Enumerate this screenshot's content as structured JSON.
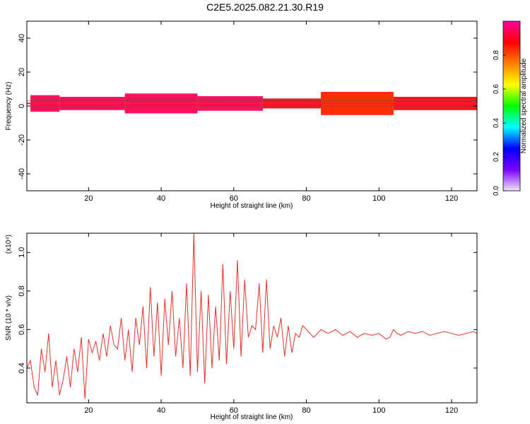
{
  "title": "C2E5.2025.082.21.30.R19",
  "chart_data": [
    {
      "type": "heatmap",
      "xlabel": "Height of straight line (km)",
      "ylabel": "Frequency (Hz)",
      "xlim": [
        3,
        127
      ],
      "ylim": [
        -50,
        50
      ],
      "xticks": [
        20,
        40,
        60,
        80,
        100,
        120
      ],
      "yticks": [
        -40,
        -20,
        0,
        20,
        40
      ],
      "ytick_labels": [
        "-40",
        "-20",
        "0",
        "20",
        "40"
      ],
      "colorbar": {
        "label": "Normalized spectral amplitude",
        "range": [
          0,
          1
        ],
        "ticks": [
          0.0,
          0.2,
          0.4,
          0.6,
          0.8
        ],
        "tick_labels": [
          "0.0",
          "0.2",
          "0.4",
          "0.6",
          "0.8"
        ],
        "colormap": [
          "#f0e4ff",
          "#7a00ff",
          "#0000ff",
          "#00ffff",
          "#00ff00",
          "#ffff00",
          "#ff8000",
          "#ff0000",
          "#ff00a0"
        ]
      },
      "band": {
        "center_hz": 1.5,
        "segments": [
          {
            "x": [
              4,
              12
            ],
            "halfwidth_hz": 2.5,
            "peak": 0.95
          },
          {
            "x": [
              12,
              30
            ],
            "halfwidth_hz": 2.0,
            "peak": 0.95
          },
          {
            "x": [
              30,
              50
            ],
            "halfwidth_hz": 3.0,
            "peak": 0.95
          },
          {
            "x": [
              50,
              68
            ],
            "halfwidth_hz": 2.2,
            "peak": 0.95
          },
          {
            "x": [
              68,
              84
            ],
            "halfwidth_hz": 1.5,
            "peak": 0.9
          },
          {
            "x": [
              84,
              104
            ],
            "halfwidth_hz": 3.5,
            "peak": 0.85
          },
          {
            "x": [
              104,
              127
            ],
            "halfwidth_hz": 2.0,
            "peak": 0.9
          }
        ]
      }
    },
    {
      "type": "line",
      "xlabel": "Height of straight line (km)",
      "ylabel": "SNR (10 * v/v)",
      "ylabel_multiplier": "(x10⁴)",
      "xlim": [
        3,
        127
      ],
      "ylim": [
        0.22,
        1.1
      ],
      "xticks": [
        20,
        40,
        60,
        80,
        100,
        120
      ],
      "yticks": [
        0.4,
        0.6,
        0.8,
        1.0
      ],
      "ytick_labels": [
        "0.4",
        "0.6",
        "0.8",
        "1.0"
      ],
      "series": [
        {
          "color": "#e8302a",
          "x": [
            3,
            4,
            5,
            6,
            7,
            8,
            9,
            10,
            11,
            12,
            13,
            14,
            15,
            16,
            17,
            18,
            19,
            20,
            21,
            22,
            23,
            24,
            25,
            26,
            27,
            28,
            29,
            30,
            31,
            32,
            33,
            34,
            35,
            36,
            37,
            38,
            39,
            40,
            41,
            42,
            43,
            44,
            45,
            46,
            47,
            48,
            49,
            50,
            51,
            52,
            53,
            54,
            55,
            56,
            57,
            58,
            59,
            60,
            61,
            62,
            63,
            64,
            65,
            66,
            67,
            68,
            69,
            70,
            71,
            72,
            73,
            74,
            75,
            76,
            77,
            78,
            79,
            80,
            82,
            84,
            86,
            88,
            90,
            92,
            94,
            96,
            98,
            100,
            102,
            103,
            104,
            105,
            106,
            108,
            110,
            112,
            114,
            116,
            118,
            120,
            122,
            124,
            126,
            127
          ],
          "y": [
            0.4,
            0.44,
            0.3,
            0.26,
            0.5,
            0.38,
            0.58,
            0.3,
            0.44,
            0.26,
            0.34,
            0.46,
            0.3,
            0.5,
            0.38,
            0.56,
            0.24,
            0.55,
            0.48,
            0.54,
            0.44,
            0.58,
            0.46,
            0.62,
            0.52,
            0.5,
            0.66,
            0.44,
            0.6,
            0.38,
            0.66,
            0.52,
            0.72,
            0.4,
            0.82,
            0.46,
            0.74,
            0.36,
            0.76,
            0.52,
            0.8,
            0.46,
            0.66,
            0.4,
            0.84,
            0.36,
            1.1,
            0.38,
            0.8,
            0.32,
            0.78,
            0.4,
            0.72,
            0.44,
            0.94,
            0.42,
            0.8,
            0.5,
            0.96,
            0.46,
            0.86,
            0.56,
            0.62,
            0.6,
            0.84,
            0.48,
            0.86,
            0.5,
            0.62,
            0.56,
            0.66,
            0.46,
            0.62,
            0.48,
            0.58,
            0.56,
            0.62,
            0.6,
            0.56,
            0.6,
            0.58,
            0.6,
            0.57,
            0.59,
            0.56,
            0.58,
            0.57,
            0.58,
            0.55,
            0.56,
            0.6,
            0.58,
            0.57,
            0.59,
            0.58,
            0.59,
            0.57,
            0.58,
            0.59,
            0.58,
            0.57,
            0.58,
            0.59,
            0.58
          ]
        }
      ]
    }
  ]
}
